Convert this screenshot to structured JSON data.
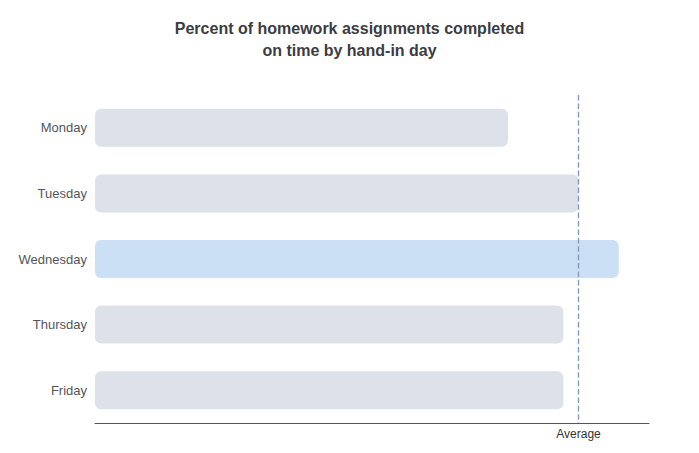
{
  "chart_data": {
    "type": "bar",
    "orientation": "horizontal",
    "title": "Percent of homework assignments completed\non time by hand-in day",
    "categories": [
      "Monday",
      "Tuesday",
      "Wednesday",
      "Thursday",
      "Friday"
    ],
    "values": [
      82,
      96,
      104,
      93,
      93
    ],
    "colors": [
      "#dde2ea",
      "#dde2ea",
      "#cce0f5",
      "#dde2ea",
      "#dde2ea"
    ],
    "xlim": [
      0,
      110
    ],
    "tick_labels": "y",
    "grid": false,
    "annotations": [
      {
        "text": "Average",
        "x": 96,
        "line_style": "dashed",
        "color": "#8899bb"
      }
    ]
  }
}
